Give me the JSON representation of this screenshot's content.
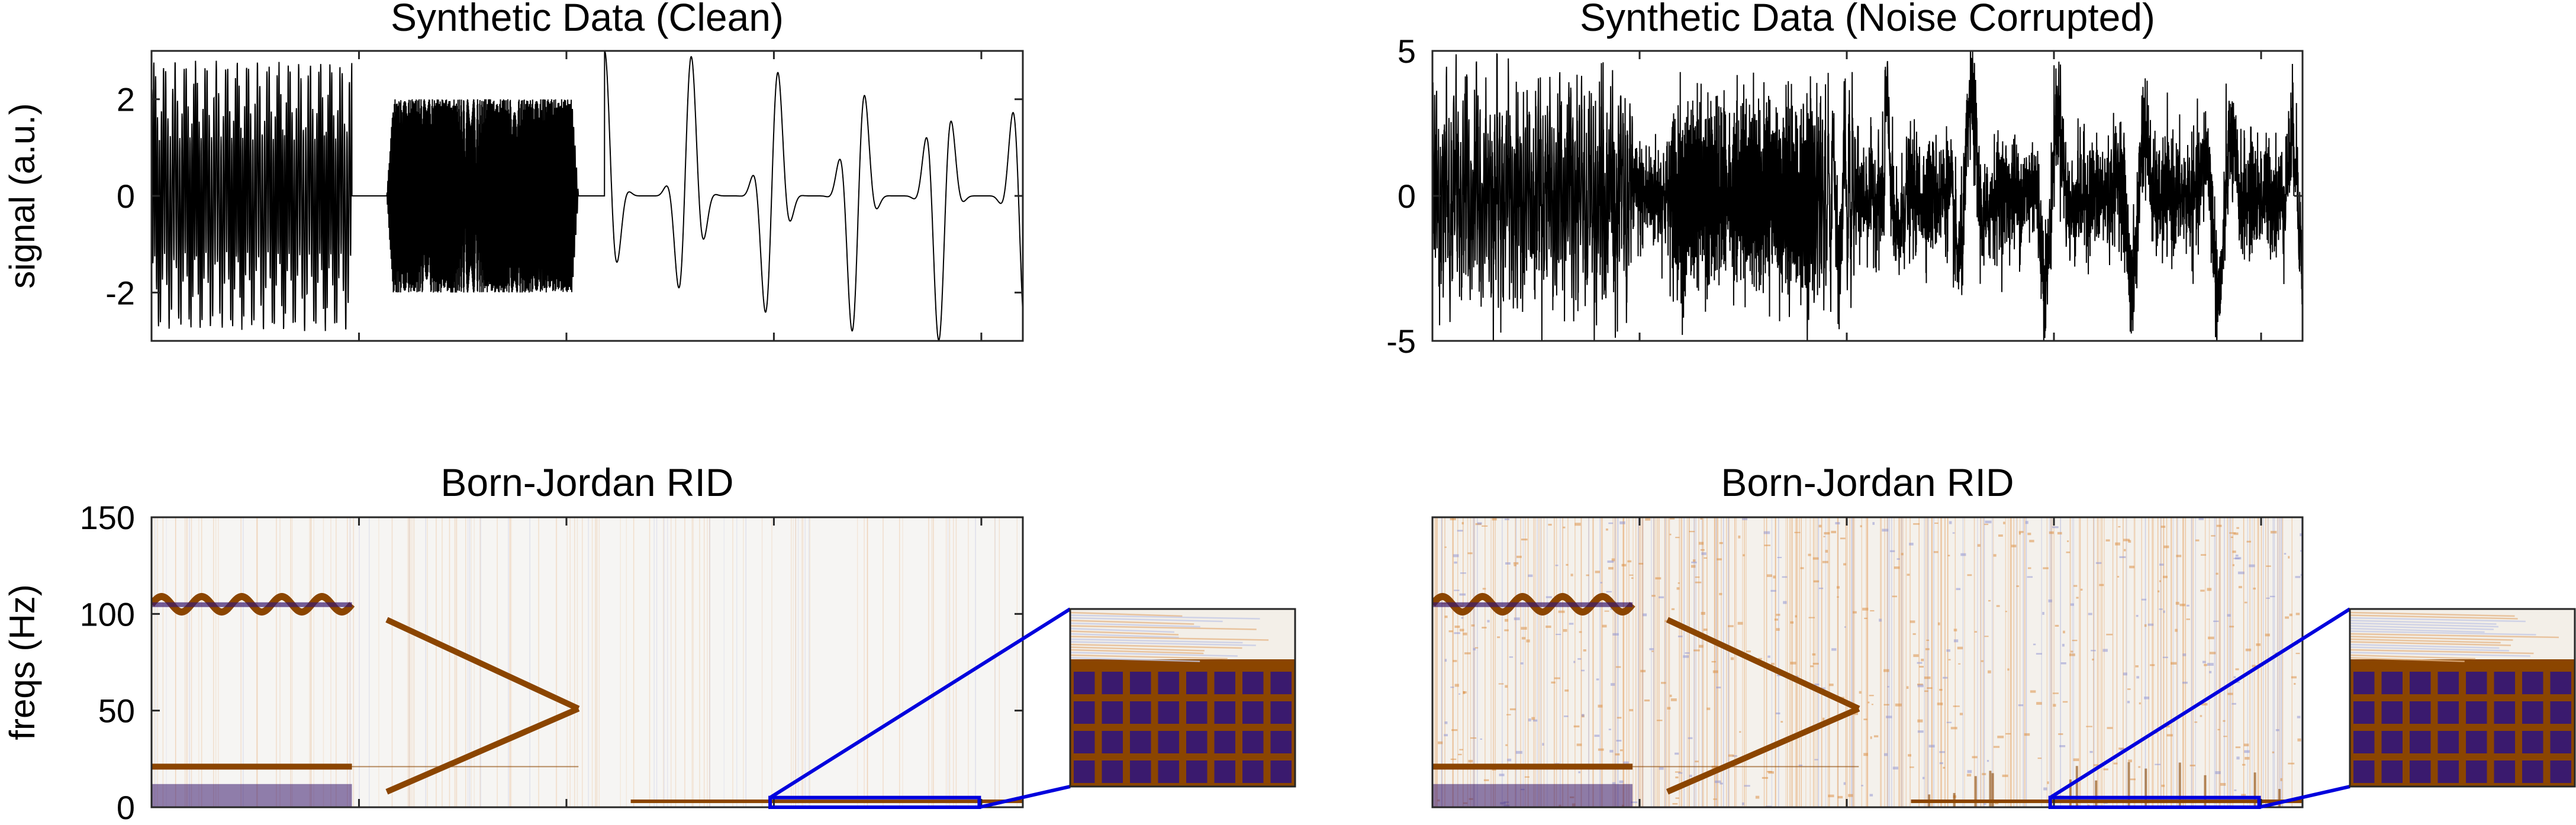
{
  "figure": {
    "background": "#ffffff",
    "signal_color": "#000000",
    "zoom_box_color": "#0000dd",
    "colormap": [
      "#3a1a6e",
      "#f7f7f7",
      "#8b4500"
    ]
  },
  "chart_data": [
    {
      "id": "clean",
      "type": "line",
      "title": "Synthetic Data (Clean)",
      "ylabel": "signal (a.u.)",
      "xlabel": "",
      "ylim": [
        -3,
        3
      ],
      "yticks": [
        -2,
        0,
        2
      ],
      "xticks_shown": 4,
      "xtick_labels": [],
      "grid": false,
      "segments": [
        {
          "x_start": 0.0,
          "x_end": 0.23,
          "kind": "fm-chirp",
          "amplitude": 2.8
        },
        {
          "x_start": 0.27,
          "x_end": 0.49,
          "kind": "chirp",
          "amplitude": 2.0
        },
        {
          "x_start": 0.52,
          "x_end": 1.0,
          "kind": "pulsed-beats",
          "amplitude": 3.0
        }
      ]
    },
    {
      "id": "noisy",
      "type": "line",
      "title": "Synthetic Data (Noise Corrupted)",
      "ylabel": "",
      "xlabel": "",
      "ylim": [
        -5,
        5
      ],
      "yticks": [
        -5,
        0,
        5
      ],
      "xticks_shown": 4,
      "xtick_labels": [],
      "grid": false
    },
    {
      "id": "tfd-clean",
      "type": "heatmap",
      "title": "Born-Jordan RID",
      "ylabel": "freqs (Hz)",
      "xlabel": "",
      "ylim": [
        0,
        150
      ],
      "yticks": [
        0,
        50,
        100,
        150
      ],
      "xticks_shown": 4,
      "xtick_labels": [],
      "components": [
        {
          "kind": "sinusoidal-fm",
          "t_start": 0.0,
          "t_end": 0.23,
          "f_center": 105,
          "f_dev": 4
        },
        {
          "kind": "tone",
          "t_start": 0.0,
          "t_end": 0.23,
          "f": 21
        },
        {
          "kind": "chirp",
          "t_start": 0.27,
          "t_end": 0.49,
          "f_start": 97,
          "f_end": 51
        },
        {
          "kind": "chirp",
          "t_start": 0.27,
          "t_end": 0.49,
          "f_start": 8,
          "f_end": 51
        },
        {
          "kind": "low-band",
          "t_start": 0.55,
          "t_end": 1.0,
          "f": 2
        }
      ],
      "zoom_region": {
        "t_start": 0.71,
        "t_end": 0.95,
        "f_min": 0,
        "f_max": 5
      },
      "inset": {
        "kind": "zoomed-tfd"
      }
    },
    {
      "id": "tfd-noisy",
      "type": "heatmap",
      "title": "Born-Jordan RID",
      "ylabel": "",
      "xlabel": "",
      "ylim": [
        0,
        150
      ],
      "yticks": [],
      "xticks_shown": 4,
      "xtick_labels": [],
      "components": [
        {
          "kind": "sinusoidal-fm",
          "t_start": 0.0,
          "t_end": 0.23,
          "f_center": 105,
          "f_dev": 4
        },
        {
          "kind": "tone",
          "t_start": 0.0,
          "t_end": 0.23,
          "f": 21
        },
        {
          "kind": "chirp",
          "t_start": 0.27,
          "t_end": 0.49,
          "f_start": 97,
          "f_end": 51
        },
        {
          "kind": "chirp",
          "t_start": 0.27,
          "t_end": 0.49,
          "f_start": 8,
          "f_end": 51
        },
        {
          "kind": "low-band",
          "t_start": 0.55,
          "t_end": 1.0,
          "f": 2
        }
      ],
      "zoom_region": {
        "t_start": 0.71,
        "t_end": 0.95,
        "f_min": 0,
        "f_max": 5
      },
      "inset": {
        "kind": "zoomed-tfd"
      }
    }
  ]
}
